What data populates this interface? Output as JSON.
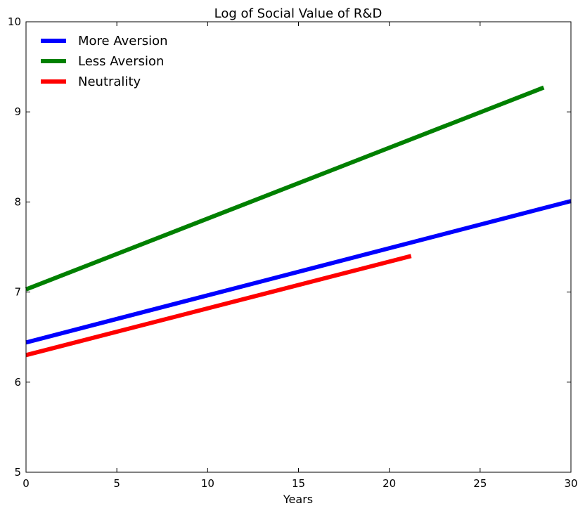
{
  "chart_data": {
    "type": "line",
    "title": "Log of Social Value of R&D",
    "xlabel": "Years",
    "ylabel": "",
    "xlim": [
      0,
      30
    ],
    "ylim": [
      5,
      10
    ],
    "xticks": [
      0,
      5,
      10,
      15,
      20,
      25,
      30
    ],
    "yticks": [
      5,
      6,
      7,
      8,
      9,
      10
    ],
    "grid": false,
    "legend_position": "top-left",
    "series": [
      {
        "name": "More Aversion",
        "color": "#0000ff",
        "x": [
          0,
          30
        ],
        "y": [
          6.44,
          8.01
        ]
      },
      {
        "name": "Less Aversion",
        "color": "#008000",
        "x": [
          0,
          28.5
        ],
        "y": [
          7.03,
          9.27
        ]
      },
      {
        "name": "Neutrality",
        "color": "#ff0000",
        "x": [
          0,
          21.2
        ],
        "y": [
          6.3,
          7.4
        ]
      }
    ]
  }
}
